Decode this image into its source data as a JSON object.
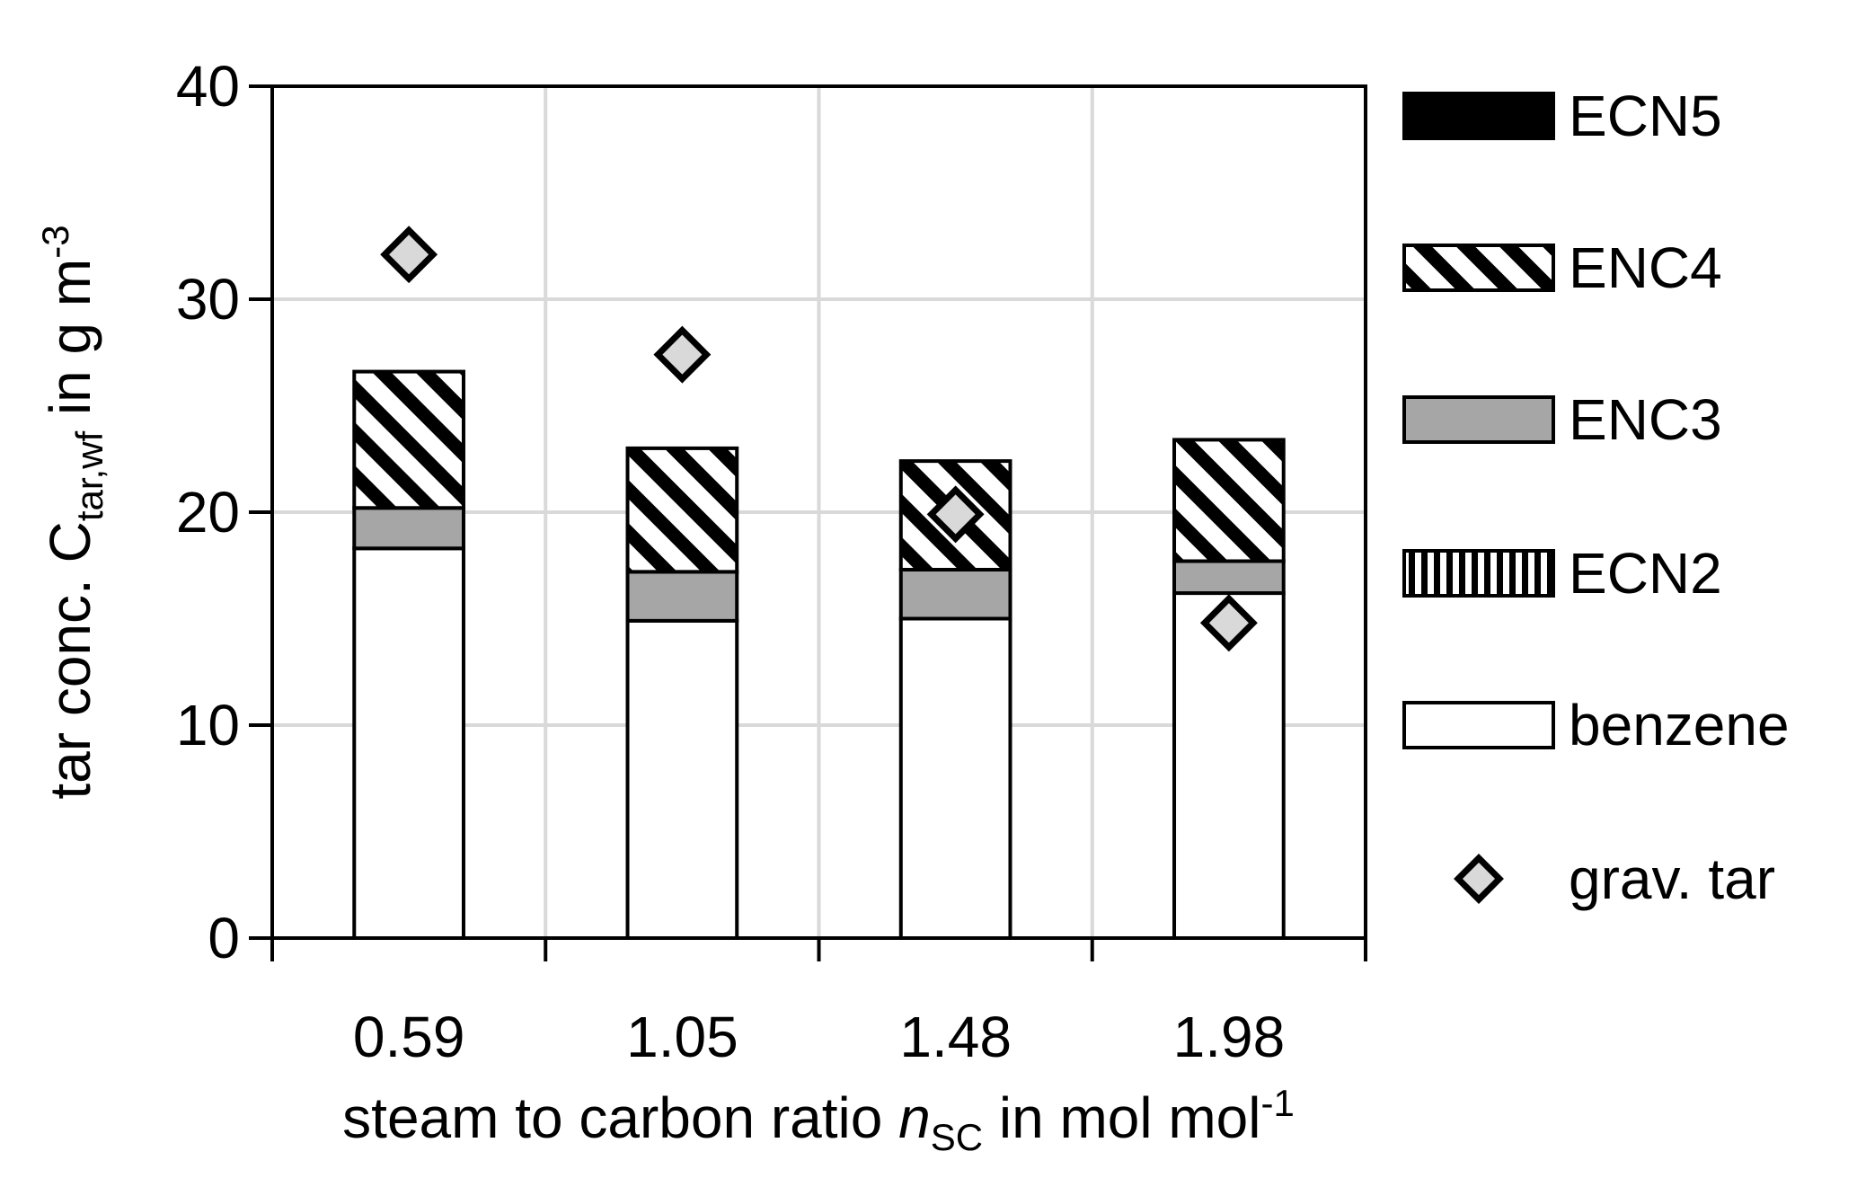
{
  "chart_data": {
    "type": "bar",
    "stacked": true,
    "categories": [
      "0.59",
      "1.05",
      "1.48",
      "1.98"
    ],
    "series": [
      {
        "name": "benzene",
        "color": "#ffffff",
        "values": [
          18.3,
          14.9,
          15.0,
          16.2
        ]
      },
      {
        "name": "ECN2",
        "color": "#000000",
        "pattern": "vertical",
        "values": [
          0,
          0,
          0,
          0
        ]
      },
      {
        "name": "ENC3",
        "color": "#a6a6a6",
        "values": [
          1.9,
          2.3,
          2.3,
          1.5
        ]
      },
      {
        "name": "ENC4",
        "color": "#000000",
        "pattern": "diagonal",
        "values": [
          6.4,
          5.8,
          5.1,
          5.7
        ]
      },
      {
        "name": "ECN5",
        "color": "#000000",
        "values": [
          0,
          0,
          0,
          0
        ]
      }
    ],
    "scatter": {
      "name": "grav. tar",
      "color": "#d9d9d9",
      "values": [
        32.1,
        27.4,
        19.9,
        14.8
      ]
    },
    "y_label_parts": [
      "tar conc. C",
      "tar,wf",
      " in g m",
      "-3"
    ],
    "x_label_parts": [
      "steam to carbon ratio ",
      "n",
      "SC",
      " in mol mol",
      "-1"
    ],
    "ylim": [
      0,
      40
    ],
    "yticks": [
      0,
      10,
      20,
      30,
      40
    ],
    "grid": true
  }
}
